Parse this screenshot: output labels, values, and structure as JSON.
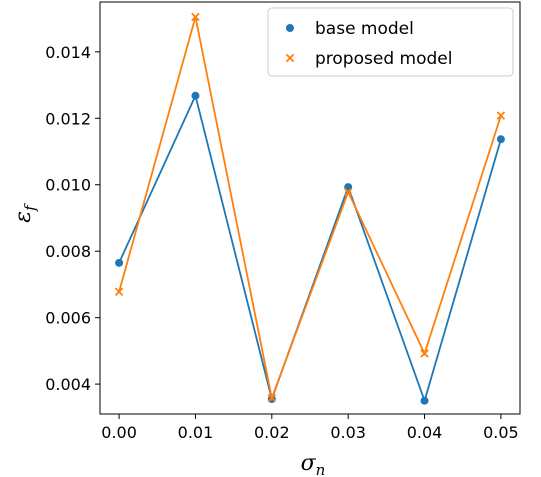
{
  "chart_data": {
    "type": "line",
    "x": [
      0.0,
      0.01,
      0.02,
      0.03,
      0.04,
      0.05
    ],
    "xlabel": "σ",
    "xlabel_sub": "n",
    "ylabel": "ε",
    "ylabel_sub": "f",
    "xlim": [
      -0.0025,
      0.0525
    ],
    "ylim": [
      0.0031,
      0.0155
    ],
    "xticks": [
      0.0,
      0.01,
      0.02,
      0.03,
      0.04,
      0.05
    ],
    "xtick_labels": [
      "0.00",
      "0.01",
      "0.02",
      "0.03",
      "0.04",
      "0.05"
    ],
    "yticks": [
      0.004,
      0.006,
      0.008,
      0.01,
      0.012,
      0.014
    ],
    "ytick_labels": [
      "0.004",
      "0.006",
      "0.008",
      "0.010",
      "0.012",
      "0.014"
    ],
    "grid": false,
    "legend_position": "top-right",
    "series": [
      {
        "name": "base model",
        "marker": "circle",
        "color": "#1f77b4",
        "values": [
          0.00765,
          0.01268,
          0.00355,
          0.00993,
          0.0035,
          0.01137
        ]
      },
      {
        "name": "proposed model",
        "marker": "x",
        "color": "#ff7f0e",
        "values": [
          0.00678,
          0.01505,
          0.00358,
          0.00978,
          0.00492,
          0.01208
        ]
      }
    ]
  }
}
